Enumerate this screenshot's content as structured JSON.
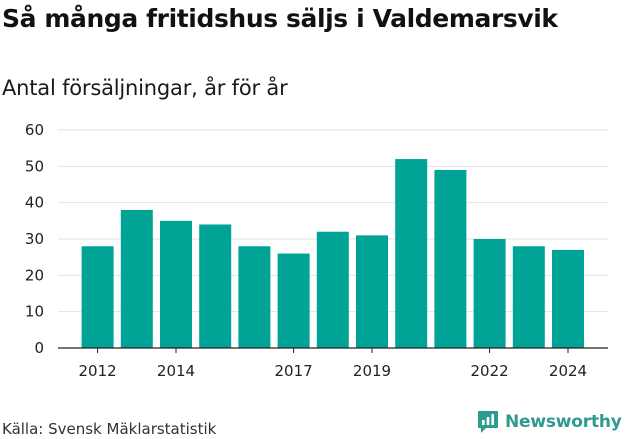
{
  "chart_data": {
    "type": "bar",
    "title": "Så många fritidshus säljs i Valdemarsvik",
    "subtitle": "Antal försäljningar, år för år",
    "x": [
      2012,
      2013,
      2014,
      2015,
      2016,
      2017,
      2018,
      2019,
      2020,
      2021,
      2022,
      2023,
      2024
    ],
    "values": [
      28,
      38,
      35,
      34,
      28,
      26,
      32,
      31,
      52,
      49,
      30,
      28,
      27
    ],
    "x_tick_labels": [
      2012,
      2014,
      2017,
      2019,
      2022,
      2024
    ],
    "y_ticks": [
      0,
      10,
      20,
      30,
      40,
      50,
      60
    ],
    "ylim": [
      0,
      60
    ],
    "xlabel": "",
    "ylabel": "",
    "grid": true,
    "bar_color": "#00a396",
    "grid_color": "#e2e2e2"
  },
  "footer": {
    "source": "Källa: Svensk Mäklarstatistik",
    "brand": "Newsworthy",
    "brand_color": "#2e9b8f",
    "brand_icon": "newsworthy-logo-icon"
  }
}
